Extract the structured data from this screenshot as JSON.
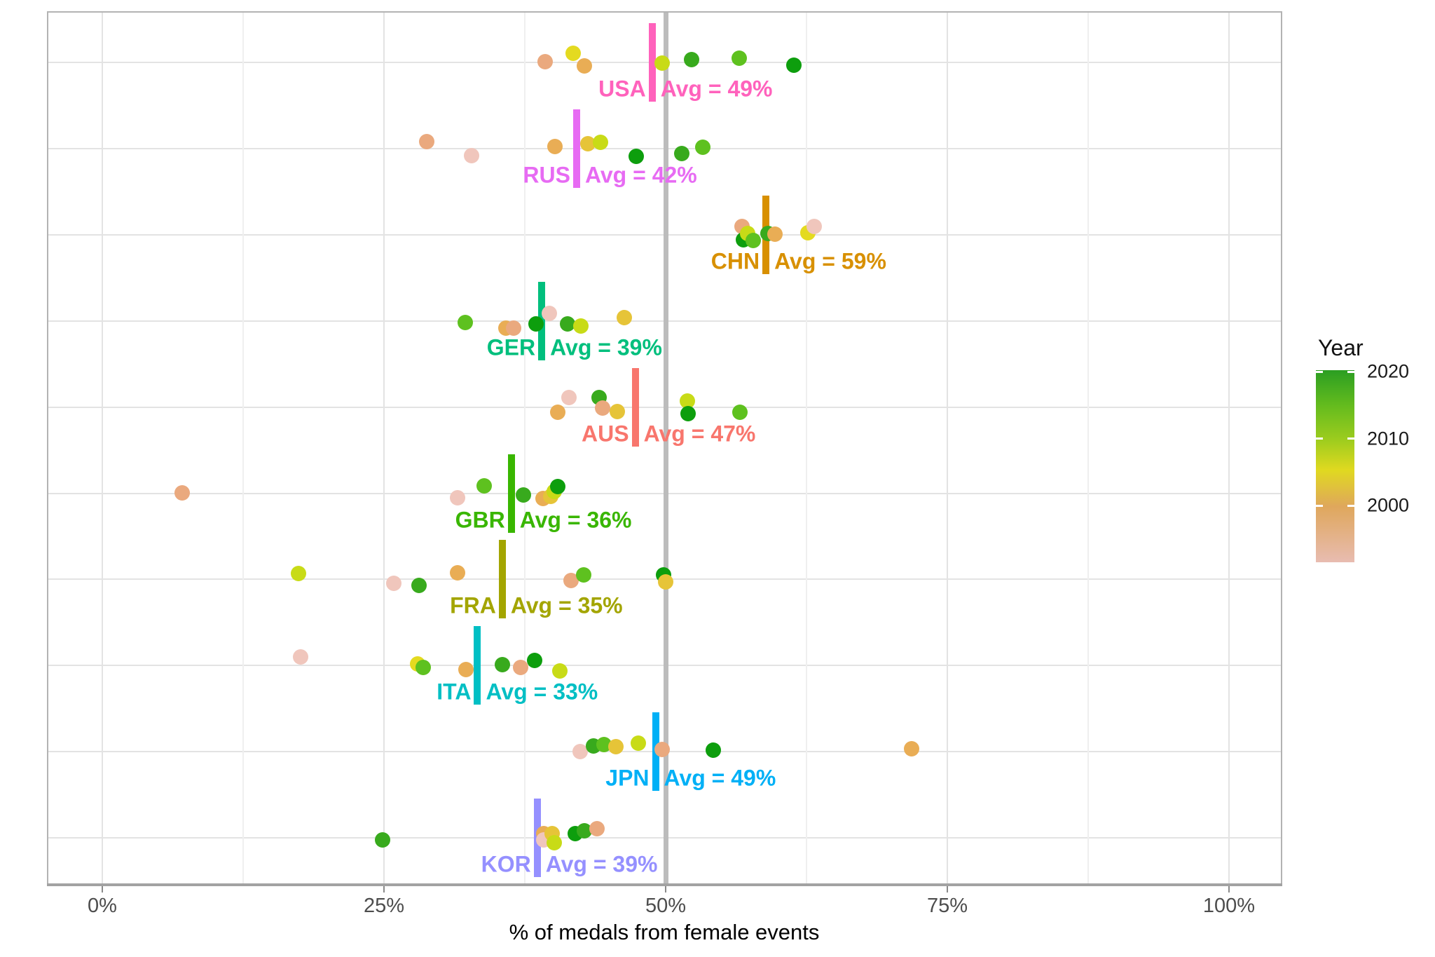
{
  "chart_data": {
    "type": "scatter",
    "title": "",
    "xlabel": "% of medals from female events",
    "ylabel": "",
    "xlim": [
      -5,
      105
    ],
    "grid": true,
    "x_ticks": [
      {
        "label": "0%",
        "value": 0
      },
      {
        "label": "25%",
        "value": 25
      },
      {
        "label": "50%",
        "value": 50
      },
      {
        "label": "75%",
        "value": 75
      },
      {
        "label": "100%",
        "value": 100
      }
    ],
    "x_minor_ticks": [
      12.5,
      37.5,
      62.5,
      87.5
    ],
    "reference_line": {
      "value": 50,
      "color": "#bcbcbc"
    },
    "legend": {
      "title": "Year",
      "position": "right",
      "range": [
        1992,
        2020
      ],
      "entries": [
        {
          "label": "2020",
          "value": 2020
        },
        {
          "label": "2010",
          "value": 2010
        },
        {
          "label": "2000",
          "value": 2000
        }
      ],
      "gradient_stops": [
        {
          "pos": 0.0,
          "color": "#2b9e22"
        },
        {
          "pos": 0.18,
          "color": "#63bb1e"
        },
        {
          "pos": 0.36,
          "color": "#9ccc1e"
        },
        {
          "pos": 0.52,
          "color": "#e0d920"
        },
        {
          "pos": 0.71,
          "color": "#dfa75c"
        },
        {
          "pos": 1.0,
          "color": "#e8bcb1"
        }
      ]
    },
    "dot_palette": {
      "pink": "#f0c6bc",
      "tan": "#eaa97e",
      "orange": "#e9ad55",
      "gold": "#e6c438",
      "yellow": "#e4da20",
      "ygreen": "#c8db17",
      "ltgreen": "#5ec11f",
      "green": "#38aa1d",
      "dkgreen": "#0d9e0d"
    },
    "countries": [
      {
        "code": "USA",
        "color": "#FF62BC",
        "avg_value": 48.8,
        "avg_text": "Avg = 49%",
        "dots": [
          [
            39.3,
            "tan",
            -1
          ],
          [
            41.8,
            "yellow",
            -13
          ],
          [
            42.8,
            "orange",
            5
          ],
          [
            49.7,
            "ygreen",
            1
          ],
          [
            52.3,
            "green",
            -4
          ],
          [
            56.5,
            "ltgreen",
            -6
          ],
          [
            61.4,
            "dkgreen",
            4
          ]
        ]
      },
      {
        "code": "RUS",
        "color": "#E76BF3",
        "avg_value": 42.1,
        "avg_text": "Avg = 42%",
        "dots": [
          [
            28.8,
            "tan",
            -10
          ],
          [
            32.8,
            "pink",
            10
          ],
          [
            40.2,
            "orange",
            -3
          ],
          [
            43.1,
            "gold",
            -7
          ],
          [
            44.2,
            "ygreen",
            -9
          ],
          [
            47.4,
            "dkgreen",
            11
          ],
          [
            51.4,
            "green",
            7
          ],
          [
            53.3,
            "ltgreen",
            -2
          ]
        ]
      },
      {
        "code": "CHN",
        "color": "#D89000",
        "avg_value": 58.9,
        "avg_text": "Avg = 59%",
        "dots": [
          [
            56.8,
            "tan",
            -12
          ],
          [
            56.9,
            "dkgreen",
            7
          ],
          [
            57.3,
            "ygreen",
            -2
          ],
          [
            57.8,
            "ltgreen",
            8
          ],
          [
            59.1,
            "green",
            -2
          ],
          [
            59.7,
            "orange",
            -1
          ],
          [
            62.6,
            "yellow",
            -3
          ],
          [
            63.2,
            "pink",
            -12
          ]
        ]
      },
      {
        "code": "GER",
        "color": "#00BF7D",
        "avg_value": 39.0,
        "avg_text": "Avg = 39%",
        "dots": [
          [
            32.2,
            "ltgreen",
            2
          ],
          [
            35.8,
            "orange",
            10
          ],
          [
            36.5,
            "tan",
            10
          ],
          [
            38.5,
            "dkgreen",
            4
          ],
          [
            39.7,
            "pink",
            -11
          ],
          [
            41.3,
            "green",
            4
          ],
          [
            42.5,
            "ygreen",
            7
          ],
          [
            46.3,
            "gold",
            -5
          ]
        ]
      },
      {
        "code": "AUS",
        "color": "#F8766D",
        "avg_value": 47.3,
        "avg_text": "Avg = 47%",
        "dots": [
          [
            40.4,
            "orange",
            7
          ],
          [
            41.4,
            "pink",
            -14
          ],
          [
            44.1,
            "green",
            -14
          ],
          [
            44.4,
            "tan",
            1
          ],
          [
            45.7,
            "gold",
            6
          ],
          [
            51.9,
            "ygreen",
            -9
          ],
          [
            52.0,
            "dkgreen",
            9
          ],
          [
            56.6,
            "ltgreen",
            7
          ]
        ]
      },
      {
        "code": "GBR",
        "color": "#39B600",
        "avg_value": 36.3,
        "avg_text": "Avg = 36%",
        "dots": [
          [
            7.1,
            "tan",
            -1
          ],
          [
            31.5,
            "pink",
            6
          ],
          [
            33.9,
            "ltgreen",
            -11
          ],
          [
            37.4,
            "green",
            2
          ],
          [
            39.1,
            "orange",
            7
          ],
          [
            39.8,
            "gold",
            4
          ],
          [
            40.1,
            "ygreen",
            -3
          ],
          [
            40.4,
            "dkgreen",
            -10
          ]
        ]
      },
      {
        "code": "FRA",
        "color": "#A3A500",
        "avg_value": 35.5,
        "avg_text": "Avg = 35%",
        "dots": [
          [
            17.4,
            "ygreen",
            -8
          ],
          [
            25.9,
            "pink",
            6
          ],
          [
            28.1,
            "green",
            9
          ],
          [
            31.5,
            "orange",
            -9
          ],
          [
            41.6,
            "tan",
            2
          ],
          [
            42.7,
            "ltgreen",
            -6
          ],
          [
            49.8,
            "dkgreen",
            -6
          ],
          [
            50.0,
            "gold",
            4
          ]
        ]
      },
      {
        "code": "ITA",
        "color": "#00BFC4",
        "avg_value": 33.3,
        "avg_text": "Avg = 33%",
        "dots": [
          [
            17.6,
            "pink",
            -12
          ],
          [
            28.0,
            "yellow",
            -2
          ],
          [
            28.5,
            "ltgreen",
            3
          ],
          [
            32.3,
            "orange",
            6
          ],
          [
            35.5,
            "green",
            -1
          ],
          [
            37.1,
            "tan",
            3
          ],
          [
            38.4,
            "dkgreen",
            -7
          ],
          [
            40.6,
            "ygreen",
            8
          ]
        ]
      },
      {
        "code": "JPN",
        "color": "#00B0F6",
        "avg_value": 49.1,
        "avg_text": "Avg = 49%",
        "dots": [
          [
            42.4,
            "pink",
            0
          ],
          [
            43.6,
            "green",
            -8
          ],
          [
            44.5,
            "ltgreen",
            -10
          ],
          [
            45.6,
            "gold",
            -7
          ],
          [
            47.6,
            "ygreen",
            -12
          ],
          [
            49.7,
            "tan",
            -3
          ],
          [
            54.2,
            "dkgreen",
            -2
          ],
          [
            71.8,
            "orange",
            -4
          ]
        ]
      },
      {
        "code": "KOR",
        "color": "#9590FF",
        "avg_value": 38.6,
        "avg_text": "Avg = 39%",
        "dots": [
          [
            24.9,
            "green",
            3
          ],
          [
            39.2,
            "orange",
            -6
          ],
          [
            39.2,
            "pink",
            3
          ],
          [
            39.9,
            "gold",
            -6
          ],
          [
            40.1,
            "ygreen",
            7
          ],
          [
            42.0,
            "dkgreen",
            -6
          ],
          [
            42.8,
            "green",
            -10
          ],
          [
            43.9,
            "tan",
            -13
          ]
        ]
      }
    ]
  }
}
